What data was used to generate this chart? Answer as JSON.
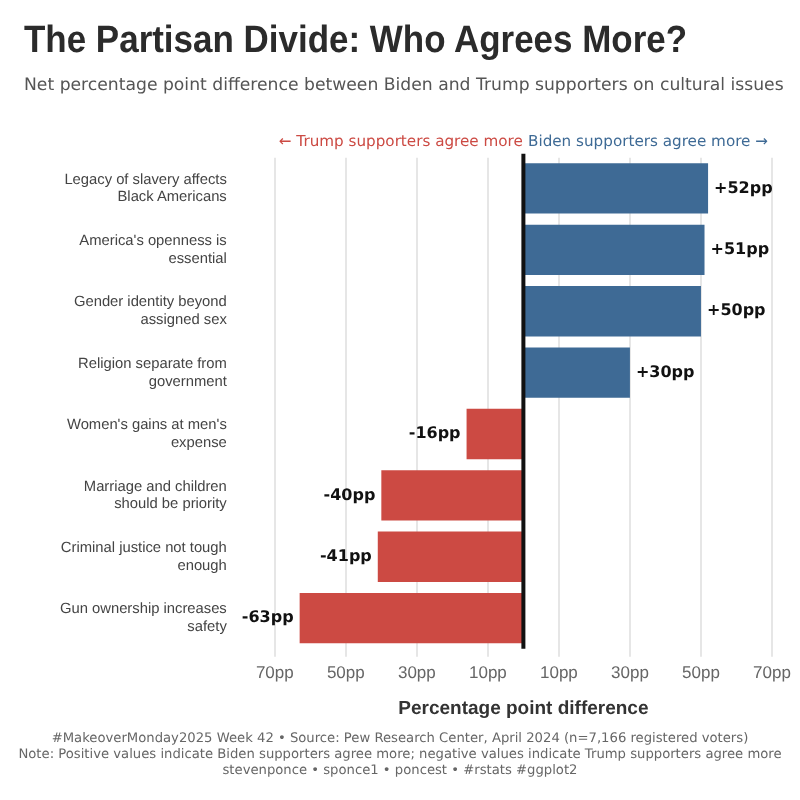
{
  "chart_data": {
    "type": "bar",
    "orientation": "horizontal",
    "title": "The Partisan Divide: Who Agrees More?",
    "subtitle": "Net percentage point difference between Biden and Trump supporters on cultural issues",
    "xlabel": "Percentage point difference",
    "categories": [
      "Legacy of slavery affects Black Americans",
      "America's openness is essential",
      "Gender identity beyond assigned sex",
      "Religion separate from government",
      "Women's gains at men's expense",
      "Marriage and children should be priority",
      "Criminal justice not tough enough",
      "Gun ownership increases safety"
    ],
    "values": [
      52,
      51,
      50,
      30,
      -16,
      -40,
      -41,
      -63
    ],
    "colors": [
      "#3e6a95",
      "#3e6a95",
      "#3e6a95",
      "#3e6a95",
      "#cc4a43",
      "#cc4a43",
      "#cc4a43",
      "#cc4a43"
    ],
    "value_labels": [
      "+52pp",
      "+51pp",
      "+50pp",
      "+30pp",
      "-16pp",
      "-40pp",
      "-41pp",
      "-63pp"
    ],
    "xlim": [
      -70,
      70
    ],
    "xticks": [
      {
        "value": -70,
        "label": "70pp"
      },
      {
        "value": -50,
        "label": "50pp"
      },
      {
        "value": -30,
        "label": "30pp"
      },
      {
        "value": -10,
        "label": "10pp"
      },
      {
        "value": 10,
        "label": "10pp"
      },
      {
        "value": 30,
        "label": "30pp"
      },
      {
        "value": 50,
        "label": "50pp"
      },
      {
        "value": 70,
        "label": "70pp"
      }
    ],
    "grid": "x",
    "ref_lines": [
      {
        "axis": "x",
        "value": 0,
        "color": "#111111"
      }
    ],
    "annotations": [
      "← Trump supporters agree more",
      "Biden supporters agree more →",
      "#MakeoverMonday2025 Week 42 • Source: Pew Research Center, April 2024 (n=7,166 registered voters)",
      "Note: Positive values indicate Biden supporters agree more; negative values indicate Trump supporters agree more",
      "stevenponce • sponce1 • poncest • #rstats #ggplot2"
    ]
  }
}
